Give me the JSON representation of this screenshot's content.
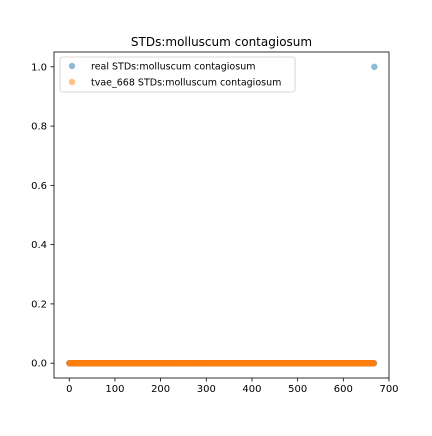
{
  "chart_data": {
    "type": "scatter",
    "title": "STDs:molluscum contagiosum",
    "xlabel": "",
    "ylabel": "",
    "xlim": [
      -33.4,
      700
    ],
    "ylim": [
      -0.05,
      1.05
    ],
    "xticks": [
      0,
      100,
      200,
      300,
      400,
      500,
      600,
      700
    ],
    "yticks": [
      0.0,
      0.2,
      0.4,
      0.6,
      0.8,
      1.0
    ],
    "xtick_labels": [
      "0",
      "100",
      "200",
      "300",
      "400",
      "500",
      "600",
      "700"
    ],
    "ytick_labels": [
      "0.0",
      "0.2",
      "0.4",
      "0.6",
      "0.8",
      "1.0"
    ],
    "grid": false,
    "legend_position": "top-left",
    "series": [
      {
        "name": "real STDs:molluscum contagiosum",
        "color": "#1f77b4",
        "alpha": 0.5,
        "points": [
          {
            "x": 668,
            "y": 1.0
          }
        ],
        "zero_range": [
          0,
          667
        ]
      },
      {
        "name": "tvae_668 STDs:molluscum contagiosum",
        "color": "#ff7f0e",
        "alpha": 0.5,
        "points": [],
        "zero_range": [
          0,
          667
        ]
      }
    ]
  }
}
